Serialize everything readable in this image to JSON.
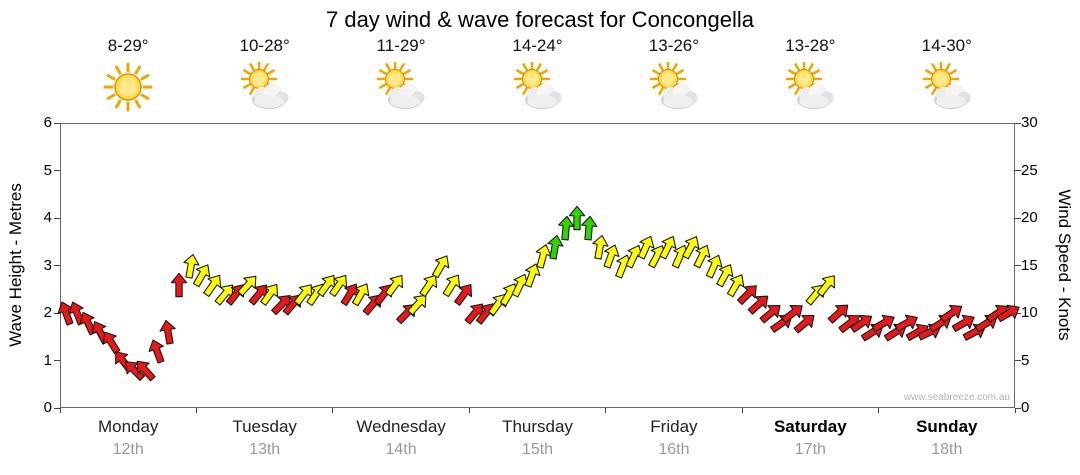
{
  "chart_data": {
    "type": "scatter",
    "marker": "wind-arrow",
    "title": "7 day wind & wave forecast for Concongella",
    "watermark": "www.seabreeze.com.au",
    "left_axis": {
      "label": "Wave Height - Metres",
      "min": 0,
      "max": 6,
      "ticks": [
        0,
        1,
        2,
        3,
        4,
        5,
        6
      ]
    },
    "right_axis": {
      "label": "Wind Speed - Knots",
      "min": 0,
      "max": 30,
      "ticks": [
        0,
        5,
        10,
        15,
        20,
        25,
        30
      ]
    },
    "grid": false,
    "legend": "none",
    "days": [
      {
        "name": "Monday",
        "date": "12th",
        "temp": "8-29°",
        "icon": "sunny",
        "bold": false
      },
      {
        "name": "Tuesday",
        "date": "13th",
        "temp": "10-28°",
        "icon": "partly-cloudy",
        "bold": false
      },
      {
        "name": "Wednesday",
        "date": "14th",
        "temp": "11-29°",
        "icon": "partly-cloudy",
        "bold": false
      },
      {
        "name": "Thursday",
        "date": "15th",
        "temp": "14-24°",
        "icon": "partly-cloudy",
        "bold": false
      },
      {
        "name": "Friday",
        "date": "16th",
        "temp": "13-26°",
        "icon": "partly-cloudy",
        "bold": false
      },
      {
        "name": "Saturday",
        "date": "17th",
        "temp": "13-28°",
        "icon": "partly-cloudy",
        "bold": true
      },
      {
        "name": "Sunday",
        "date": "18th",
        "temp": "14-30°",
        "icon": "partly-cloudy",
        "bold": true
      }
    ],
    "color_map": {
      "r": "#e51919",
      "y": "#ffff00",
      "g": "#2fd400"
    },
    "series": [
      {
        "name": "Wind speed",
        "unit": "knots",
        "points_per_day": 12,
        "knots": [
          10,
          10,
          9,
          8,
          7,
          5,
          4,
          4,
          6,
          8,
          13,
          15,
          14,
          13,
          12,
          12,
          13,
          12,
          12,
          11,
          11,
          12,
          12,
          13,
          13,
          12,
          12,
          11,
          12,
          13,
          10,
          11,
          13,
          15,
          13,
          12,
          10,
          10,
          11,
          12,
          13,
          14,
          16,
          17,
          19,
          20,
          19,
          17,
          16,
          15,
          16,
          17,
          16,
          17,
          16,
          17,
          16,
          15,
          14,
          13,
          12,
          11,
          10,
          9,
          10,
          9,
          12,
          13,
          10,
          9,
          9,
          8,
          9,
          8,
          9,
          8,
          8,
          9,
          10,
          9,
          8,
          9,
          10,
          10
        ],
        "colors": [
          "r",
          "r",
          "r",
          "r",
          "r",
          "r",
          "r",
          "r",
          "r",
          "r",
          "r",
          "y",
          "y",
          "y",
          "y",
          "r",
          "y",
          "r",
          "y",
          "r",
          "r",
          "y",
          "y",
          "y",
          "y",
          "r",
          "y",
          "r",
          "r",
          "y",
          "r",
          "y",
          "y",
          "y",
          "y",
          "r",
          "r",
          "r",
          "y",
          "y",
          "y",
          "y",
          "y",
          "g",
          "g",
          "g",
          "g",
          "y",
          "y",
          "y",
          "y",
          "y",
          "y",
          "y",
          "y",
          "y",
          "y",
          "y",
          "y",
          "y",
          "r",
          "r",
          "r",
          "r",
          "r",
          "r",
          "y",
          "y",
          "r",
          "r",
          "r",
          "r",
          "r",
          "r",
          "r",
          "r",
          "r",
          "r",
          "r",
          "r",
          "r",
          "r",
          "r",
          "r"
        ],
        "directions_deg": [
          340,
          338,
          335,
          332,
          328,
          322,
          315,
          318,
          340,
          350,
          0,
          10,
          30,
          35,
          40,
          38,
          42,
          40,
          36,
          44,
          40,
          38,
          34,
          36,
          35,
          32,
          30,
          40,
          38,
          36,
          44,
          42,
          34,
          30,
          32,
          36,
          40,
          38,
          36,
          30,
          25,
          20,
          15,
          10,
          5,
          0,
          5,
          10,
          20,
          22,
          25,
          24,
          28,
          26,
          24,
          28,
          26,
          24,
          28,
          30,
          45,
          48,
          50,
          55,
          52,
          50,
          40,
          38,
          48,
          52,
          55,
          58,
          60,
          58,
          62,
          60,
          64,
          58,
          56,
          60,
          62,
          58,
          56,
          60
        ]
      }
    ]
  }
}
